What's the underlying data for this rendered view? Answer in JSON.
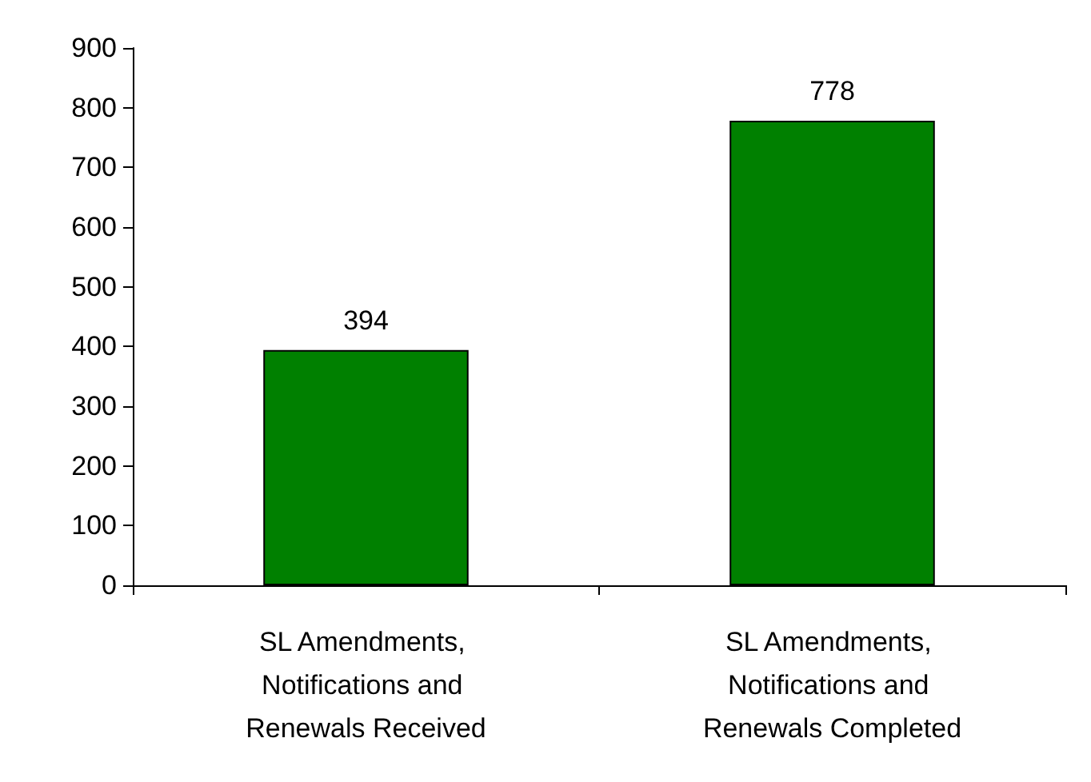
{
  "chart_data": {
    "type": "bar",
    "categories": [
      "SL Amendments, Notifications and Renewals Received",
      "SL Amendments, Notifications and Renewals Completed"
    ],
    "values": [
      394,
      778
    ],
    "color": "#008000",
    "ylim": [
      0,
      900
    ],
    "yticks": [
      0,
      100,
      200,
      300,
      400,
      500,
      600,
      700,
      800,
      900
    ],
    "grid": false,
    "data_labels": true
  }
}
